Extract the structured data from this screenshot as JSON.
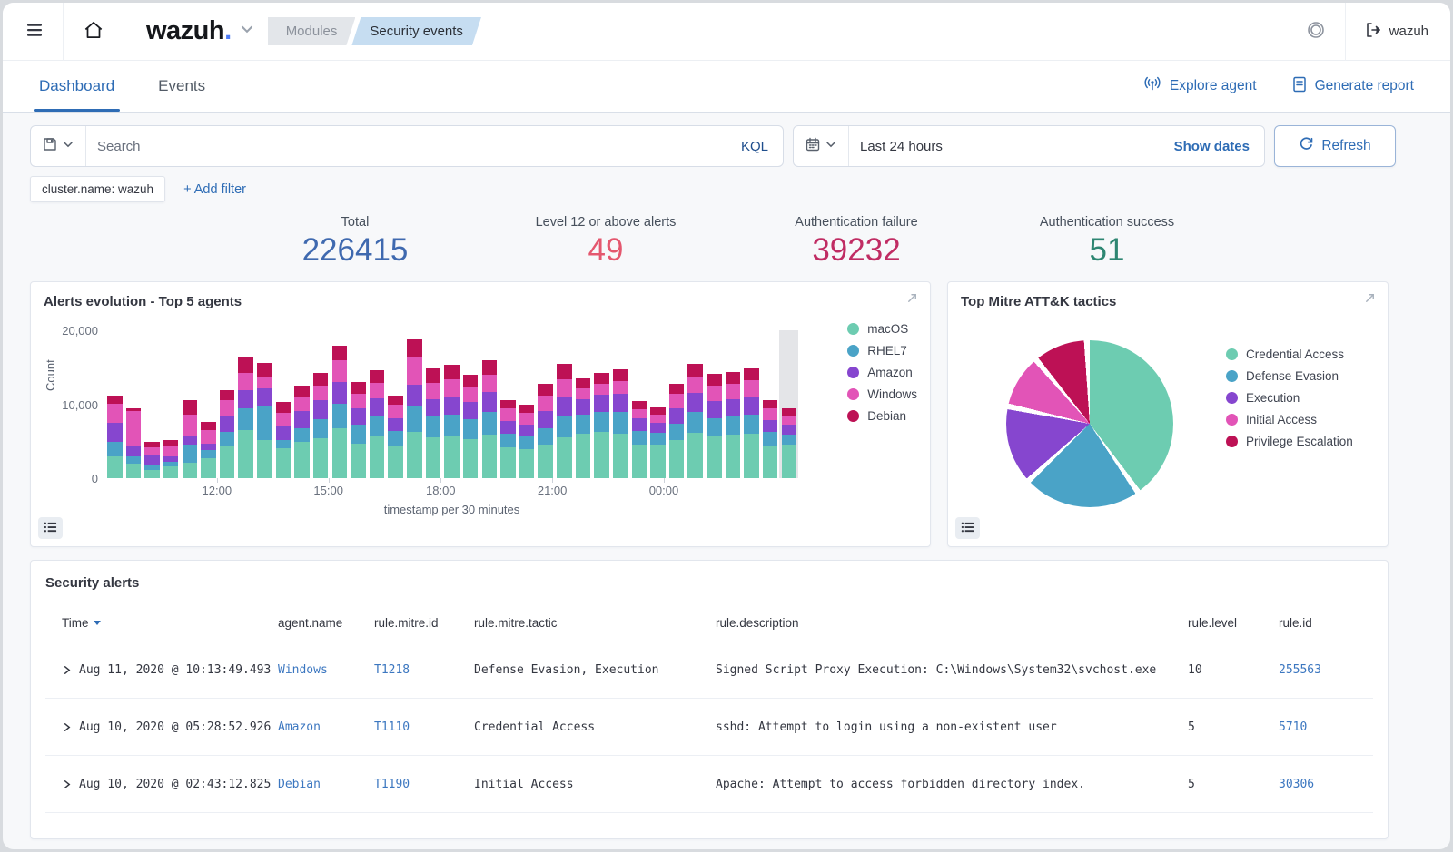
{
  "topbar": {
    "logo_text": "wazuh",
    "logo_dot": ".",
    "breadcrumbs": [
      {
        "label": "Modules",
        "active": false
      },
      {
        "label": "Security events",
        "active": true
      }
    ],
    "user": "wazuh"
  },
  "tabs": {
    "dashboard": "Dashboard",
    "events": "Events"
  },
  "actions": {
    "explore_agent": "Explore agent",
    "generate_report": "Generate report"
  },
  "search": {
    "placeholder": "Search",
    "language": "KQL"
  },
  "datepicker": {
    "range": "Last 24 hours",
    "show_dates": "Show dates",
    "refresh": "Refresh"
  },
  "filters": {
    "chip": "cluster.name: wazuh",
    "add": "+ Add filter"
  },
  "stats": [
    {
      "label": "Total",
      "value": "226415",
      "color": "#3f69af"
    },
    {
      "label": "Level 12 or above alerts",
      "value": "49",
      "color": "#e4576e"
    },
    {
      "label": "Authentication failure",
      "value": "39232",
      "color": "#c02c63"
    },
    {
      "label": "Authentication success",
      "value": "51",
      "color": "#2e8672"
    }
  ],
  "chart_data": [
    {
      "type": "bar",
      "title": "Alerts evolution - Top 5 agents",
      "stacked": true,
      "xlabel": "timestamp per 30 minutes",
      "ylabel": "Count",
      "ylim": [
        0,
        20000
      ],
      "yticks": [
        {
          "label": "20,000",
          "frac": 0
        },
        {
          "label": "10,000",
          "frac": 0.5
        },
        {
          "label": "0",
          "frac": 1
        }
      ],
      "xticks": [
        {
          "label": "12:00",
          "pos": 0.161
        },
        {
          "label": "15:00",
          "pos": 0.322
        },
        {
          "label": "18:00",
          "pos": 0.484
        },
        {
          "label": "21:00",
          "pos": 0.645
        },
        {
          "label": "00:00",
          "pos": 0.806
        }
      ],
      "legend_position": "right",
      "grid": false,
      "highlight_last_bucket": true,
      "series": [
        {
          "name": "macOS",
          "color": "#6dccb1",
          "values": [
            2900,
            2000,
            1100,
            1600,
            2100,
            2700,
            4400,
            6500,
            5200,
            4000,
            4900,
            5400,
            6800,
            4700,
            5800,
            4300,
            6200,
            5500,
            5600,
            5300,
            5900,
            4200,
            3900,
            4600,
            5500,
            6000,
            6200,
            6000,
            4500,
            4600,
            5100,
            6100,
            5600,
            5900,
            6000,
            4400,
            4500
          ]
        },
        {
          "name": "RHEL7",
          "color": "#4aa3c7",
          "values": [
            2000,
            900,
            800,
            600,
            2500,
            1100,
            1900,
            2900,
            4600,
            1200,
            1800,
            2600,
            3300,
            2600,
            2700,
            2100,
            3500,
            2800,
            3000,
            2700,
            3100,
            1800,
            1700,
            2200,
            2800,
            2600,
            2800,
            2900,
            1900,
            1500,
            2300,
            2800,
            2500,
            2500,
            2600,
            1800,
            1400
          ]
        },
        {
          "name": "Amazon",
          "color": "#8646cf",
          "values": [
            2600,
            1500,
            1300,
            700,
            1100,
            900,
            2100,
            2500,
            2400,
            1900,
            2400,
            2500,
            2900,
            2200,
            2300,
            1700,
            3000,
            2400,
            2500,
            2300,
            2600,
            1700,
            1600,
            2300,
            2700,
            2100,
            2300,
            2500,
            1700,
            1400,
            2100,
            2600,
            2300,
            2300,
            2400,
            1700,
            1300
          ]
        },
        {
          "name": "Windows",
          "color": "#e254b7",
          "values": [
            2600,
            4700,
            1000,
            1500,
            2900,
            1800,
            2100,
            2300,
            1600,
            1700,
            1900,
            2000,
            2900,
            1900,
            2100,
            1800,
            3600,
            2200,
            2300,
            2100,
            2400,
            1700,
            1600,
            2100,
            2400,
            1400,
            1500,
            1700,
            1200,
            1100,
            1900,
            2300,
            2100,
            2100,
            2200,
            1500,
            1300
          ]
        },
        {
          "name": "Debian",
          "color": "#bd1155",
          "values": [
            1100,
            300,
            700,
            800,
            1900,
            1100,
            1400,
            2300,
            1800,
            1500,
            1500,
            1700,
            2000,
            1600,
            1700,
            1300,
            2500,
            2000,
            1900,
            1600,
            1900,
            1100,
            1100,
            1600,
            2100,
            1400,
            1500,
            1600,
            1100,
            1000,
            1400,
            1700,
            1600,
            1600,
            1600,
            1100,
            1000
          ]
        }
      ]
    },
    {
      "type": "pie",
      "title": "Top Mitre ATT&K tactics",
      "legend_position": "right",
      "slices": [
        {
          "label": "Credential Access",
          "percent": 42,
          "color": "#6dccb1"
        },
        {
          "label": "Defense Evasion",
          "percent": 23,
          "color": "#4aa3c7"
        },
        {
          "label": "Execution",
          "percent": 15,
          "color": "#8646cf"
        },
        {
          "label": "Initial Access",
          "percent": 10,
          "color": "#e254b7"
        },
        {
          "label": "Privilege Escalation",
          "percent": 10,
          "color": "#bd1155"
        }
      ]
    }
  ],
  "table": {
    "title": "Security alerts",
    "headers": [
      "Time",
      "agent.name",
      "rule.mitre.id",
      "rule.mitre.tactic",
      "rule.description",
      "rule.level",
      "rule.id"
    ],
    "rows": [
      [
        "Aug 11, 2020 @ 10:13:49.493",
        "Windows",
        "T1218",
        "Defense Evasion, Execution",
        "Signed Script Proxy Execution: C:\\Windows\\System32\\svchost.exe",
        "10",
        "255563"
      ],
      [
        "Aug 10, 2020 @ 05:28:52.926",
        "Amazon",
        "T1110",
        "Credential Access",
        "sshd: Attempt to login using a non-existent user",
        "5",
        "5710"
      ],
      [
        "Aug 10, 2020 @ 02:43:12.825",
        "Debian",
        "T1190",
        "Initial Access",
        "Apache: Attempt to access forbidden directory index.",
        "5",
        "30306"
      ]
    ]
  }
}
